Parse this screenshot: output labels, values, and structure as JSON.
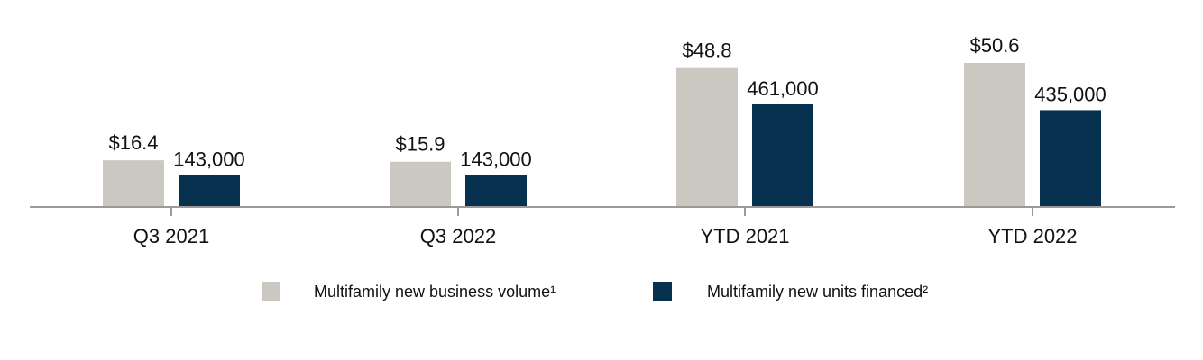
{
  "chart_data": {
    "type": "bar",
    "title": "",
    "xlabel": "",
    "ylabel": "",
    "categories": [
      "Q3 2021",
      "Q3 2022",
      "YTD 2021",
      "YTD 2022"
    ],
    "series": [
      {
        "name": "Multifamily new business volume¹",
        "values": [
          16.4,
          15.9,
          48.8,
          50.6
        ],
        "labels": [
          "$16.4",
          "$15.9",
          "$48.8",
          "$50.6"
        ],
        "color": "#cbc8c2"
      },
      {
        "name": "Multifamily new units financed²",
        "values": [
          143000,
          143000,
          461000,
          435000
        ],
        "labels": [
          "143,000",
          "143,000",
          "461,000",
          "435,000"
        ],
        "color": "#08304f"
      }
    ],
    "legend_position": "bottom",
    "grid": false,
    "axis_color": "#9a9a9a"
  }
}
